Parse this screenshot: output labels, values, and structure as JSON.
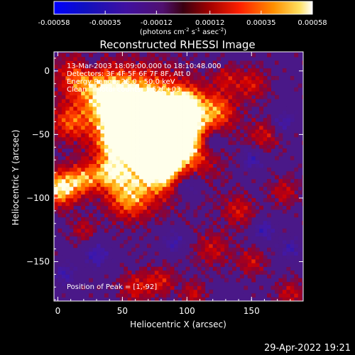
{
  "chart_data": {
    "type": "heatmap",
    "title": "Reconstructed RHESSI Image",
    "xlabel": "Heliocentric X (arcsec)",
    "ylabel": "Heliocentric Y (arcsec)",
    "xlim": [
      -3,
      190
    ],
    "ylim": [
      -181,
      15
    ],
    "xticks": [
      0,
      50,
      100,
      150
    ],
    "yticks": [
      0,
      -50,
      -100,
      -150
    ],
    "colorbar": {
      "range": [
        -0.00058,
        0.00058
      ],
      "ticks": [
        "-0.00058",
        "-0.00035",
        "-0.00012",
        "0.00012",
        "0.00035",
        "0.00058"
      ],
      "units_prefix": "(photons cm",
      "units_exp1": "-2",
      "units_mid": " s",
      "units_exp2": "-1",
      "units_suffix": " asec",
      "units_exp3": "-2",
      "units_close": ")"
    },
    "peak": {
      "x": 1,
      "y": -92
    },
    "annotations": [
      "13-Mar-2003 18:09:00.000 to 18:10:48.000",
      "Detectors: 3F 4F 5F 6F 7F 8F, Att 0",
      "Energy Range: 25.0 - 50.0 keV",
      "Clean     Total counts: 1.52E+03"
    ],
    "peak_label": "Position of Peak = [1,-92]",
    "blobs": [
      {
        "x": 75,
        "y": -55,
        "r": 28,
        "v": 1.0
      },
      {
        "x": 60,
        "y": -35,
        "r": 22,
        "v": 0.85
      },
      {
        "x": 92,
        "y": -45,
        "r": 18,
        "v": 0.8
      },
      {
        "x": 40,
        "y": -20,
        "r": 14,
        "v": 0.7
      },
      {
        "x": 15,
        "y": -5,
        "r": 12,
        "v": 0.6
      },
      {
        "x": 8,
        "y": -40,
        "r": 10,
        "v": 0.55
      },
      {
        "x": 2,
        "y": -92,
        "r": 10,
        "v": 1.0
      },
      {
        "x": 20,
        "y": -85,
        "r": 8,
        "v": 0.6
      },
      {
        "x": 40,
        "y": -80,
        "r": 9,
        "v": 0.6
      },
      {
        "x": 55,
        "y": -100,
        "r": 12,
        "v": 0.65
      },
      {
        "x": 80,
        "y": -80,
        "r": 10,
        "v": 0.55
      },
      {
        "x": 100,
        "y": -25,
        "r": 8,
        "v": 0.5
      },
      {
        "x": 125,
        "y": -30,
        "r": 10,
        "v": 0.5
      },
      {
        "x": 150,
        "y": -10,
        "r": 9,
        "v": 0.45
      },
      {
        "x": 160,
        "y": -50,
        "r": 9,
        "v": 0.4
      },
      {
        "x": 175,
        "y": -95,
        "r": 8,
        "v": 0.4
      },
      {
        "x": 140,
        "y": -110,
        "r": 9,
        "v": 0.45
      },
      {
        "x": 120,
        "y": -140,
        "r": 10,
        "v": 0.4
      },
      {
        "x": 150,
        "y": -150,
        "r": 8,
        "v": 0.4
      },
      {
        "x": 60,
        "y": -170,
        "r": 9,
        "v": 0.45
      },
      {
        "x": 80,
        "y": -165,
        "r": 8,
        "v": 0.45
      },
      {
        "x": 105,
        "y": -175,
        "r": 7,
        "v": 0.4
      },
      {
        "x": 180,
        "y": -175,
        "r": 8,
        "v": 0.4
      },
      {
        "x": 20,
        "y": -125,
        "r": 7,
        "v": 0.35
      },
      {
        "x": 45,
        "y": -55,
        "r": 8,
        "v": 0.45
      },
      {
        "x": 130,
        "y": -5,
        "r": 7,
        "v": 0.35
      },
      {
        "x": 120,
        "y": -55,
        "r": 7,
        "v": -0.6
      },
      {
        "x": 100,
        "y": -90,
        "r": 8,
        "v": -0.55
      },
      {
        "x": 150,
        "y": -70,
        "r": 6,
        "v": -0.5
      },
      {
        "x": 175,
        "y": -40,
        "r": 6,
        "v": -0.45
      },
      {
        "x": 30,
        "y": -145,
        "r": 7,
        "v": -0.5
      },
      {
        "x": 90,
        "y": -135,
        "r": 6,
        "v": -0.45
      },
      {
        "x": 160,
        "y": -125,
        "r": 6,
        "v": -0.5
      },
      {
        "x": 180,
        "y": -140,
        "r": 6,
        "v": -0.45
      },
      {
        "x": 25,
        "y": 5,
        "r": 5,
        "v": -0.4
      },
      {
        "x": 5,
        "y": -160,
        "r": 6,
        "v": -0.45
      }
    ]
  },
  "footer": {
    "timestamp": "29-Apr-2022 19:21"
  }
}
